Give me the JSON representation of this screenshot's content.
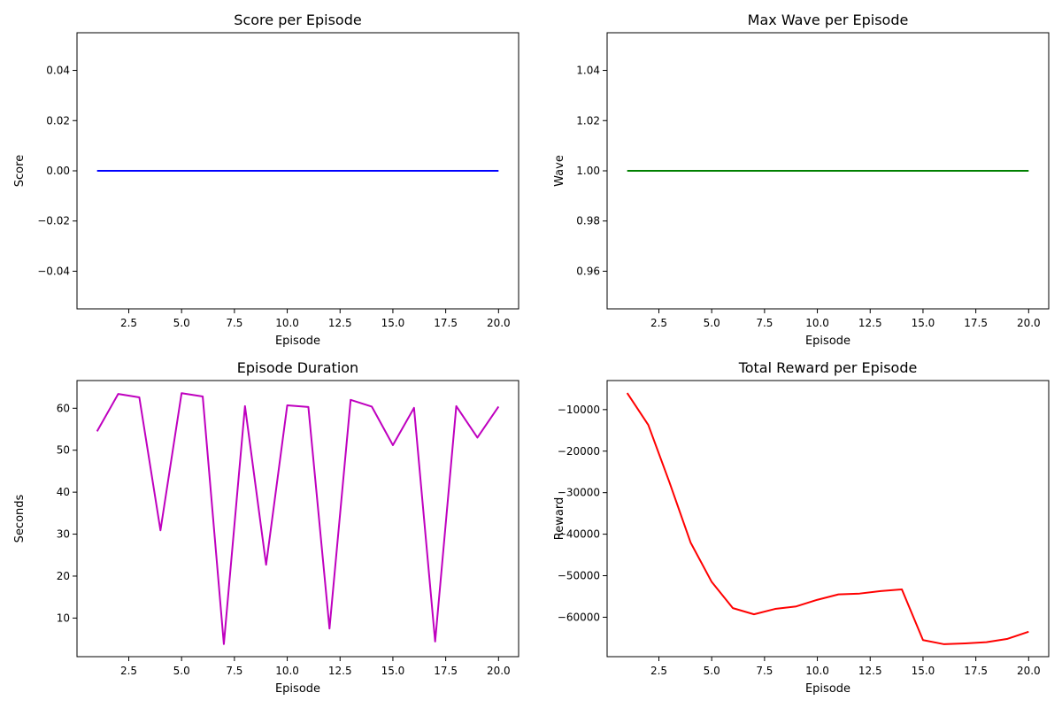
{
  "chart_data": [
    {
      "type": "line",
      "title": "Score per Episode",
      "xlabel": "Episode",
      "ylabel": "Score",
      "xlim": [
        0.05,
        20.95
      ],
      "ylim": [
        -0.055,
        0.055
      ],
      "xticks": [
        2.5,
        5.0,
        7.5,
        10.0,
        12.5,
        15.0,
        17.5,
        20.0
      ],
      "xtick_labels": [
        "2.5",
        "5.0",
        "7.5",
        "10.0",
        "12.5",
        "15.0",
        "17.5",
        "20.0"
      ],
      "yticks": [
        -0.04,
        -0.02,
        0.0,
        0.02,
        0.04
      ],
      "ytick_labels": [
        "−0.04",
        "−0.02",
        "0.00",
        "0.02",
        "0.04"
      ],
      "grid": false,
      "series": [
        {
          "color": "#0000ff",
          "x": [
            1,
            2,
            3,
            4,
            5,
            6,
            7,
            8,
            9,
            10,
            11,
            12,
            13,
            14,
            15,
            16,
            17,
            18,
            19,
            20
          ],
          "y": [
            0,
            0,
            0,
            0,
            0,
            0,
            0,
            0,
            0,
            0,
            0,
            0,
            0,
            0,
            0,
            0,
            0,
            0,
            0,
            0
          ]
        }
      ]
    },
    {
      "type": "line",
      "title": "Max Wave per Episode",
      "xlabel": "Episode",
      "ylabel": "Wave",
      "xlim": [
        0.05,
        20.95
      ],
      "ylim": [
        0.945,
        1.055
      ],
      "xticks": [
        2.5,
        5.0,
        7.5,
        10.0,
        12.5,
        15.0,
        17.5,
        20.0
      ],
      "xtick_labels": [
        "2.5",
        "5.0",
        "7.5",
        "10.0",
        "12.5",
        "15.0",
        "17.5",
        "20.0"
      ],
      "yticks": [
        0.96,
        0.98,
        1.0,
        1.02,
        1.04
      ],
      "ytick_labels": [
        "0.96",
        "0.98",
        "1.00",
        "1.02",
        "1.04"
      ],
      "grid": false,
      "series": [
        {
          "color": "#008000",
          "x": [
            1,
            2,
            3,
            4,
            5,
            6,
            7,
            8,
            9,
            10,
            11,
            12,
            13,
            14,
            15,
            16,
            17,
            18,
            19,
            20
          ],
          "y": [
            1,
            1,
            1,
            1,
            1,
            1,
            1,
            1,
            1,
            1,
            1,
            1,
            1,
            1,
            1,
            1,
            1,
            1,
            1,
            1
          ]
        }
      ]
    },
    {
      "type": "line",
      "title": "Episode Duration",
      "xlabel": "Episode",
      "ylabel": "Seconds",
      "xlim": [
        0.05,
        20.95
      ],
      "ylim": [
        0.8,
        66.6
      ],
      "xticks": [
        2.5,
        5.0,
        7.5,
        10.0,
        12.5,
        15.0,
        17.5,
        20.0
      ],
      "xtick_labels": [
        "2.5",
        "5.0",
        "7.5",
        "10.0",
        "12.5",
        "15.0",
        "17.5",
        "20.0"
      ],
      "yticks": [
        10,
        20,
        30,
        40,
        50,
        60
      ],
      "ytick_labels": [
        "10",
        "20",
        "30",
        "40",
        "50",
        "60"
      ],
      "grid": false,
      "series": [
        {
          "color": "#bf00bf",
          "x": [
            1,
            2,
            3,
            4,
            5,
            6,
            7,
            8,
            9,
            10,
            11,
            12,
            13,
            14,
            15,
            16,
            17,
            18,
            19,
            20
          ],
          "y": [
            54.5,
            63.4,
            62.6,
            30.9,
            63.6,
            62.8,
            3.8,
            60.5,
            22.7,
            60.7,
            60.3,
            7.5,
            62.0,
            60.4,
            51.2,
            60.1,
            4.4,
            60.5,
            53.0,
            60.4
          ]
        }
      ]
    },
    {
      "type": "line",
      "title": "Total Reward per Episode",
      "xlabel": "Episode",
      "ylabel": "Reward",
      "xlim": [
        0.05,
        20.95
      ],
      "ylim": [
        -69500,
        -3000
      ],
      "xticks": [
        2.5,
        5.0,
        7.5,
        10.0,
        12.5,
        15.0,
        17.5,
        20.0
      ],
      "xtick_labels": [
        "2.5",
        "5.0",
        "7.5",
        "10.0",
        "12.5",
        "15.0",
        "17.5",
        "20.0"
      ],
      "yticks": [
        -60000,
        -50000,
        -40000,
        -30000,
        -20000,
        -10000
      ],
      "ytick_labels": [
        "−60000",
        "−50000",
        "−40000",
        "−30000",
        "−20000",
        "−10000"
      ],
      "grid": false,
      "series": [
        {
          "color": "#ff0000",
          "x": [
            1,
            2,
            3,
            4,
            5,
            6,
            7,
            8,
            9,
            10,
            11,
            12,
            13,
            14,
            15,
            16,
            17,
            18,
            19,
            20
          ],
          "y": [
            -6000,
            -13700,
            -27500,
            -42000,
            -51500,
            -57800,
            -59300,
            -58000,
            -57400,
            -55800,
            -54500,
            -54300,
            -53700,
            -53300,
            -65500,
            -66500,
            -66300,
            -66000,
            -65200,
            -63500
          ]
        }
      ]
    }
  ]
}
